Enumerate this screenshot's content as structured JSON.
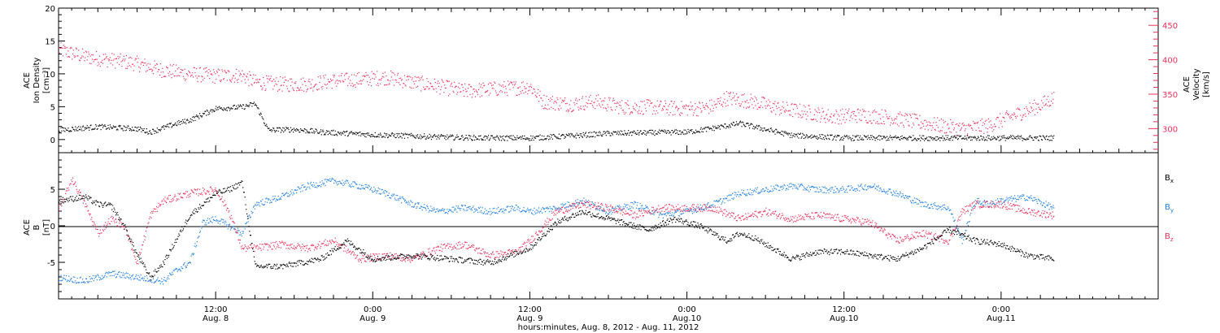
{
  "figure": {
    "xlabel": "hours:minutes, Aug.  8, 2012 - Aug. 11, 2012",
    "xticks": [
      {
        "t": 12,
        "time": "12:00",
        "day": "Aug. 8"
      },
      {
        "t": 24,
        "time": "0:00",
        "day": "Aug. 9"
      },
      {
        "t": 36,
        "time": "12:00",
        "day": "Aug. 9"
      },
      {
        "t": 48,
        "time": "0:00",
        "day": "Aug.10"
      },
      {
        "t": 60,
        "time": "12:00",
        "day": "Aug.10"
      },
      {
        "t": 72,
        "time": "0:00",
        "day": "Aug.11"
      }
    ]
  },
  "colors": {
    "black": "#000000",
    "pink": "#e8305a",
    "blue": "#1e7fe0"
  },
  "top_panel": {
    "ylabel_left": [
      "ACE",
      "Ion Density",
      "[cm⁻³]"
    ],
    "ylabel_right": [
      "ACE",
      "Velocity",
      "[km/s]"
    ]
  },
  "bottom_panel": {
    "ylabel": [
      "ACE",
      "B",
      "[nT]"
    ],
    "legend": [
      "Bx",
      "By",
      "Bz"
    ]
  },
  "chart_data": [
    {
      "type": "scatter",
      "panel": "top",
      "xlim": [
        0,
        84
      ],
      "ylim_left": [
        -2,
        20
      ],
      "ylim_right": [
        265,
        475
      ],
      "yticks_left": [
        0,
        5,
        10,
        15,
        20
      ],
      "yticks_right": [
        300,
        350,
        400,
        450
      ],
      "series": [
        {
          "axis": "left",
          "color": "#000000",
          "x": [
            0,
            3,
            6,
            7,
            9,
            10,
            12,
            14,
            15,
            16,
            18,
            20,
            22,
            24,
            27,
            30,
            33,
            36,
            39,
            42,
            45,
            48,
            50,
            52,
            54,
            56,
            58,
            60,
            63,
            66,
            69,
            72,
            74,
            76
          ],
          "values": [
            1.5,
            2.0,
            1.7,
            1.2,
            2.5,
            3.0,
            4.8,
            5.0,
            5.5,
            1.5,
            1.6,
            1.2,
            1.0,
            0.8,
            0.6,
            0.4,
            0.3,
            0.3,
            0.6,
            1.0,
            1.1,
            1.2,
            1.8,
            2.5,
            1.6,
            0.7,
            0.5,
            0.3,
            0.3,
            0.3,
            0.3,
            0.3,
            0.3,
            0.3
          ]
        },
        {
          "axis": "right",
          "color": "#e8305a",
          "x": [
            0,
            2,
            4,
            6,
            8,
            10,
            12,
            14,
            15,
            17,
            19,
            21,
            23,
            25,
            27,
            29,
            31,
            33,
            35,
            36,
            37,
            39,
            41,
            43,
            45,
            47,
            49,
            50,
            51,
            53,
            55,
            57,
            59,
            61,
            63,
            65,
            67,
            69,
            71,
            73,
            75,
            76
          ],
          "values": [
            415,
            405,
            400,
            395,
            385,
            380,
            377,
            378,
            368,
            365,
            365,
            370,
            372,
            375,
            368,
            362,
            355,
            358,
            360,
            362,
            340,
            336,
            340,
            332,
            332,
            330,
            330,
            333,
            345,
            340,
            330,
            325,
            318,
            320,
            318,
            312,
            306,
            300,
            305,
            320,
            335,
            345
          ]
        }
      ]
    },
    {
      "type": "scatter",
      "panel": "bottom",
      "xlim": [
        0,
        84
      ],
      "ylim": [
        -10,
        10
      ],
      "yticks": [
        -5,
        0,
        5
      ],
      "series": [
        {
          "name": "Bx",
          "color": "#000000",
          "x": [
            0,
            2,
            3,
            4,
            5,
            6,
            7,
            8,
            10,
            12,
            13,
            14,
            15,
            17,
            20,
            22,
            24,
            27,
            30,
            33,
            36,
            38,
            40,
            41,
            43,
            45,
            47,
            49,
            51,
            52,
            53,
            54,
            56,
            58,
            60,
            62,
            64,
            66,
            68,
            70,
            72,
            74,
            76
          ],
          "values": [
            3.5,
            4.0,
            3.0,
            2.8,
            0,
            -4.0,
            -7.0,
            -5.0,
            1.5,
            4.5,
            5.0,
            6.0,
            -5.5,
            -5.5,
            -4.5,
            -2.0,
            -4.5,
            -4.0,
            -4.5,
            -5.0,
            -3.0,
            0.5,
            2.0,
            1.5,
            0.5,
            -0.5,
            1.0,
            0,
            -2.0,
            -1.0,
            -1.5,
            -2.5,
            -4.5,
            -3.5,
            -3.5,
            -4.0,
            -4.5,
            -3.0,
            -0.5,
            -2.0,
            -2.5,
            -4.0,
            -4.5
          ]
        },
        {
          "name": "By",
          "color": "#1e7fe0",
          "x": [
            0,
            2,
            4,
            6,
            8,
            9,
            10,
            11,
            12,
            14,
            15,
            17,
            19,
            21,
            23,
            25,
            27,
            29,
            31,
            33,
            35,
            36,
            38,
            40,
            42,
            44,
            46,
            48,
            50,
            52,
            54,
            56,
            58,
            60,
            62,
            64,
            66,
            68,
            69,
            70,
            71,
            72,
            74,
            76
          ],
          "values": [
            -7.0,
            -7.5,
            -6.5,
            -7.0,
            -7.5,
            -6.0,
            -5.0,
            0.5,
            1.0,
            -1.0,
            3.0,
            4.0,
            5.5,
            6.2,
            5.5,
            4.5,
            3.0,
            2.0,
            2.5,
            2.0,
            2.5,
            2.0,
            2.5,
            3.5,
            2.0,
            3.0,
            1.5,
            2.0,
            3.0,
            4.5,
            5.0,
            5.5,
            5.0,
            5.0,
            5.5,
            4.5,
            3.0,
            2.5,
            -2.0,
            3.5,
            3.0,
            3.5,
            4.0,
            2.5
          ]
        },
        {
          "name": "Bz",
          "color": "#e8305a",
          "x": [
            0,
            1,
            2,
            3,
            4,
            5,
            6,
            7,
            8,
            10,
            12,
            13,
            14,
            15,
            17,
            19,
            21,
            23,
            25,
            27,
            29,
            31,
            33,
            35,
            36,
            37,
            38,
            40,
            42,
            44,
            46,
            48,
            50,
            52,
            54,
            56,
            58,
            60,
            62,
            64,
            66,
            68,
            69,
            70,
            72,
            74,
            76
          ],
          "values": [
            2.0,
            6.5,
            3.0,
            -1.0,
            1.0,
            0,
            -5.0,
            1.5,
            3.5,
            4.5,
            5.0,
            2.0,
            -3.0,
            -3.0,
            -2.5,
            -3.0,
            -2.0,
            -4.5,
            -4.0,
            -4.5,
            -3.0,
            -2.5,
            -4.0,
            -3.5,
            -2.0,
            0,
            2.0,
            3.0,
            2.5,
            1.5,
            2.5,
            2.5,
            2.5,
            1.0,
            2.0,
            1.0,
            1.5,
            1.0,
            0.5,
            -2.0,
            -1.0,
            -2.0,
            2.0,
            3.0,
            3.0,
            2.0,
            1.5
          ]
        }
      ]
    }
  ]
}
